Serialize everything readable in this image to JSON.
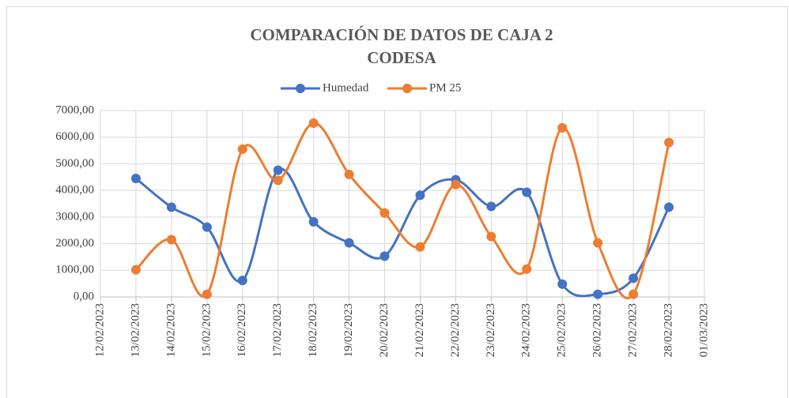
{
  "chart_data": {
    "type": "line",
    "title": [
      "COMPARACIÓN DE DATOS DE CAJA 2",
      "CODESA"
    ],
    "categories": [
      "12/02/2023",
      "13/02/2023",
      "14/02/2023",
      "15/02/2023",
      "16/02/2023",
      "17/02/2023",
      "18/02/2023",
      "19/02/2023",
      "20/02/2023",
      "21/02/2023",
      "22/02/2023",
      "23/02/2023",
      "24/02/2023",
      "25/02/2023",
      "26/02/2023",
      "27/02/2023",
      "28/02/2023",
      "01/03/2023"
    ],
    "series": [
      {
        "name": "Humedad",
        "color": "#4472c4",
        "values": [
          null,
          4450,
          3370,
          2620,
          620,
          4760,
          2820,
          2030,
          1530,
          3820,
          4400,
          3400,
          3930,
          480,
          100,
          700,
          3370,
          null
        ]
      },
      {
        "name": "PM 25",
        "color": "#ed7d31",
        "values": [
          null,
          1020,
          2150,
          100,
          5550,
          4380,
          6530,
          4600,
          3150,
          1880,
          4220,
          2270,
          1050,
          6350,
          2030,
          100,
          5800,
          null
        ]
      }
    ],
    "ylim": [
      0,
      7000
    ],
    "yticks": [
      {
        "value": 0,
        "label": "0,00"
      },
      {
        "value": 1000,
        "label": "1000,00"
      },
      {
        "value": 2000,
        "label": "2000,00"
      },
      {
        "value": 3000,
        "label": "3000,00"
      },
      {
        "value": 4000,
        "label": "4000,00"
      },
      {
        "value": 5000,
        "label": "5000,00"
      },
      {
        "value": 6000,
        "label": "6000,00"
      },
      {
        "value": 7000,
        "label": "7000,00"
      }
    ],
    "grid": true,
    "legend": "top",
    "smooth": true
  }
}
